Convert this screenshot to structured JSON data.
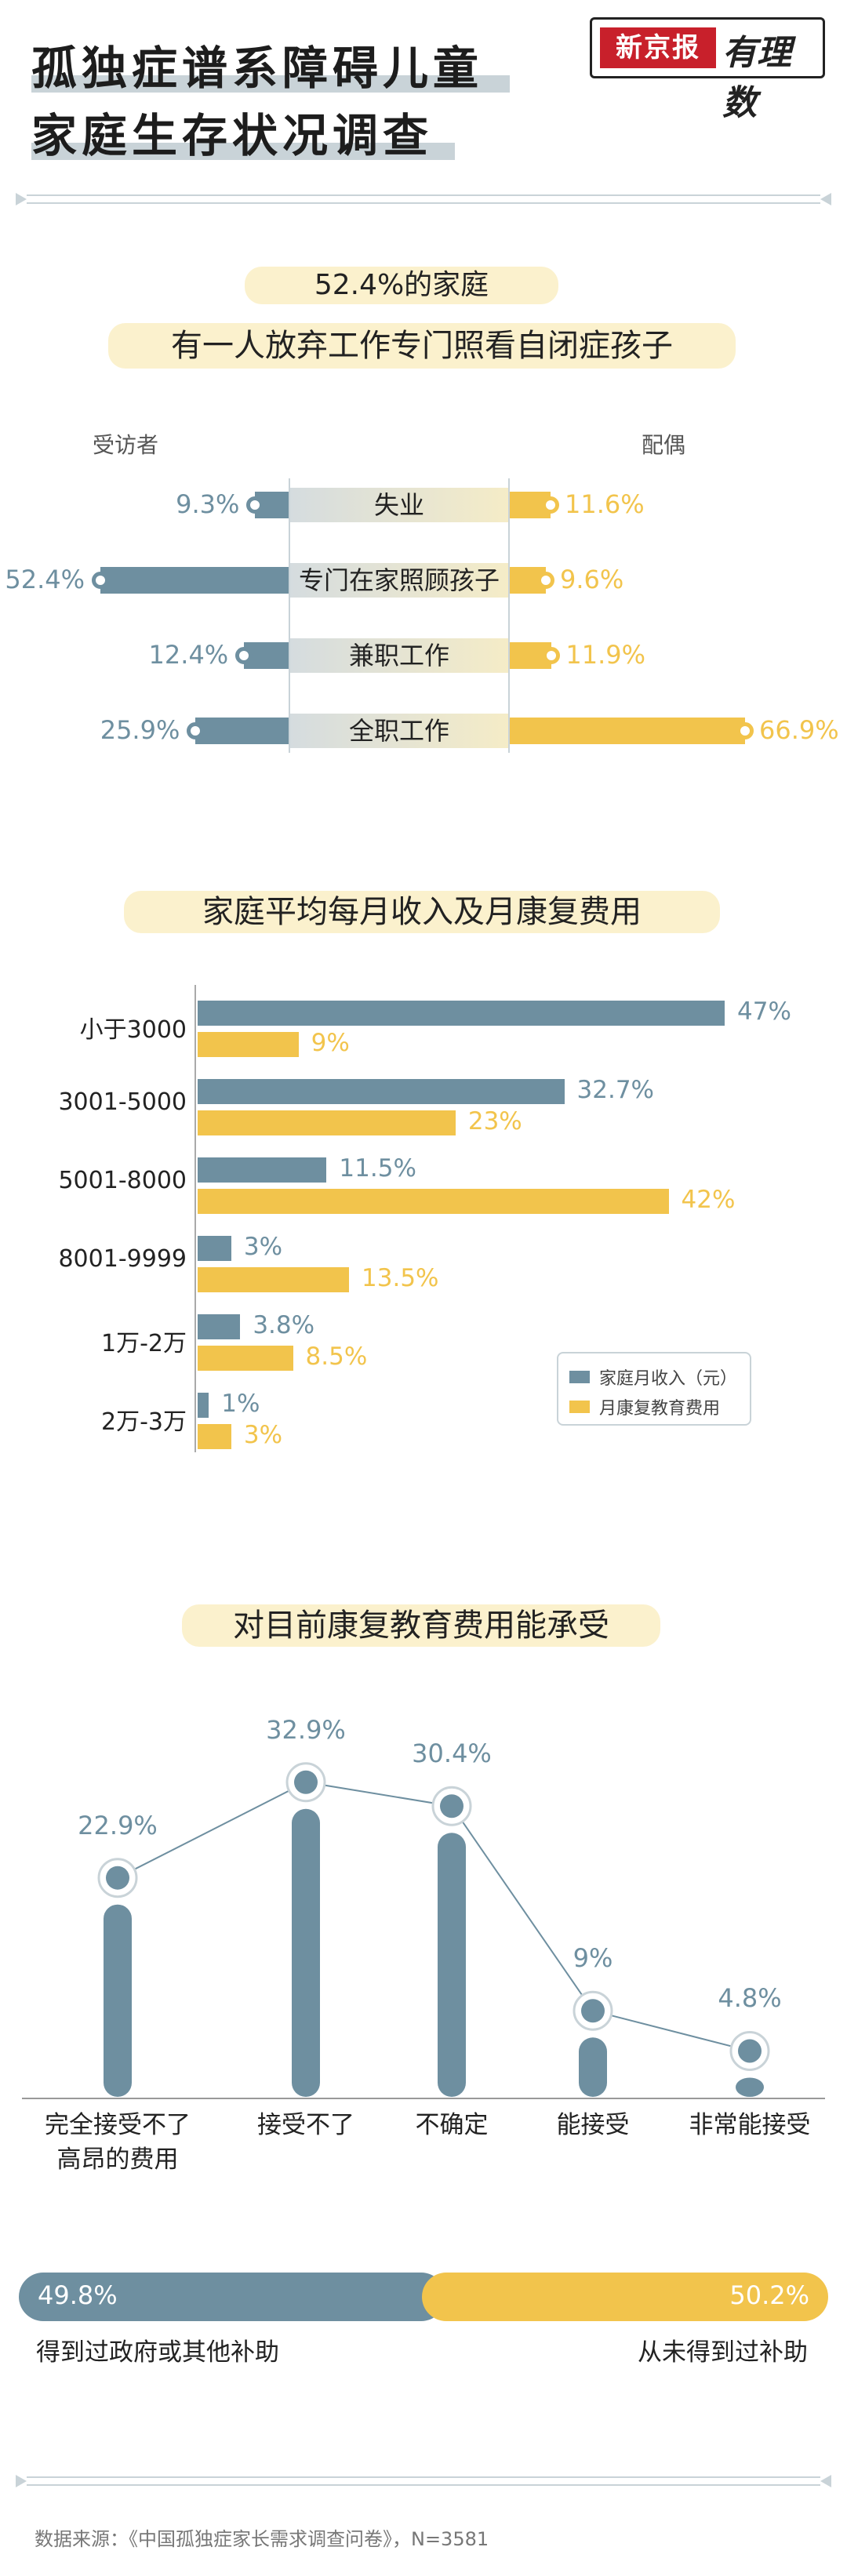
{
  "header": {
    "title_line1": "孤独症谱系障碍儿童",
    "title_line2": "家庭生存状况调查",
    "logo_brand": "新京报",
    "logo_script": "有理数"
  },
  "section1": {
    "headline_pct": "52.4%的家庭",
    "headline_text": "有一人放弃工作专门照看自闭症孩子",
    "left_label": "受访者",
    "right_label": "配偶"
  },
  "section2": {
    "title": "家庭平均每月收入及月康复费用"
  },
  "section3": {
    "title": "对目前康复教育费用能承受"
  },
  "section4": {
    "left_pct": "49.8%",
    "right_pct": "50.2%",
    "left_label": "得到过政府或其他补助",
    "right_label": "从未得到过补助"
  },
  "source": "数据来源：《中国孤独症家长需求调查问卷》，N=3581",
  "colors": {
    "blue": "#6e8fa0",
    "yellow": "#f2c44c",
    "pale_yellow": "#fbf1cd",
    "line": "#c9d3d8"
  },
  "chart_data": [
    {
      "type": "bar",
      "orientation": "butterfly",
      "categories": [
        "失业",
        "专门在家照顾孩子",
        "兼职工作",
        "全职工作"
      ],
      "series": [
        {
          "name": "受访者",
          "values": [
            9.3,
            52.4,
            12.4,
            25.9
          ],
          "labels": [
            "9.3%",
            "52.4%",
            "12.4%",
            "25.9%"
          ]
        },
        {
          "name": "配偶",
          "values": [
            11.6,
            9.6,
            11.9,
            66.9
          ],
          "labels": [
            "11.6%",
            "9.6%",
            "11.9%",
            "66.9%"
          ]
        }
      ]
    },
    {
      "type": "bar",
      "orientation": "horizontal",
      "categories": [
        "小于3000",
        "3001-5000",
        "5001-8000",
        "8001-9999",
        "1万-2万",
        "2万-3万"
      ],
      "series": [
        {
          "name": "家庭月收入（元）",
          "values": [
            47,
            32.7,
            11.5,
            3,
            3.8,
            1
          ],
          "labels": [
            "47%",
            "32.7%",
            "11.5%",
            "3%",
            "3.8%",
            "1%"
          ]
        },
        {
          "name": "月康复教育费用",
          "values": [
            9,
            23,
            42,
            13.5,
            8.5,
            3
          ],
          "labels": [
            "9%",
            "23%",
            "42%",
            "13.5%",
            "8.5%",
            "3%"
          ]
        }
      ],
      "legend": "bottom-right",
      "grid": false
    },
    {
      "type": "line",
      "categories": [
        "完全接受不了\n高昂的费用",
        "接受不了",
        "不确定",
        "能接受",
        "非常能接受"
      ],
      "values": [
        22.9,
        32.9,
        30.4,
        9,
        4.8
      ],
      "labels": [
        "22.9%",
        "32.9%",
        "30.4%",
        "9%",
        "4.8%"
      ]
    },
    {
      "type": "bar",
      "orientation": "stacked-100",
      "categories": [
        "得到过政府或其他补助",
        "从未得到过补助"
      ],
      "values": [
        49.8,
        50.2
      ]
    }
  ]
}
